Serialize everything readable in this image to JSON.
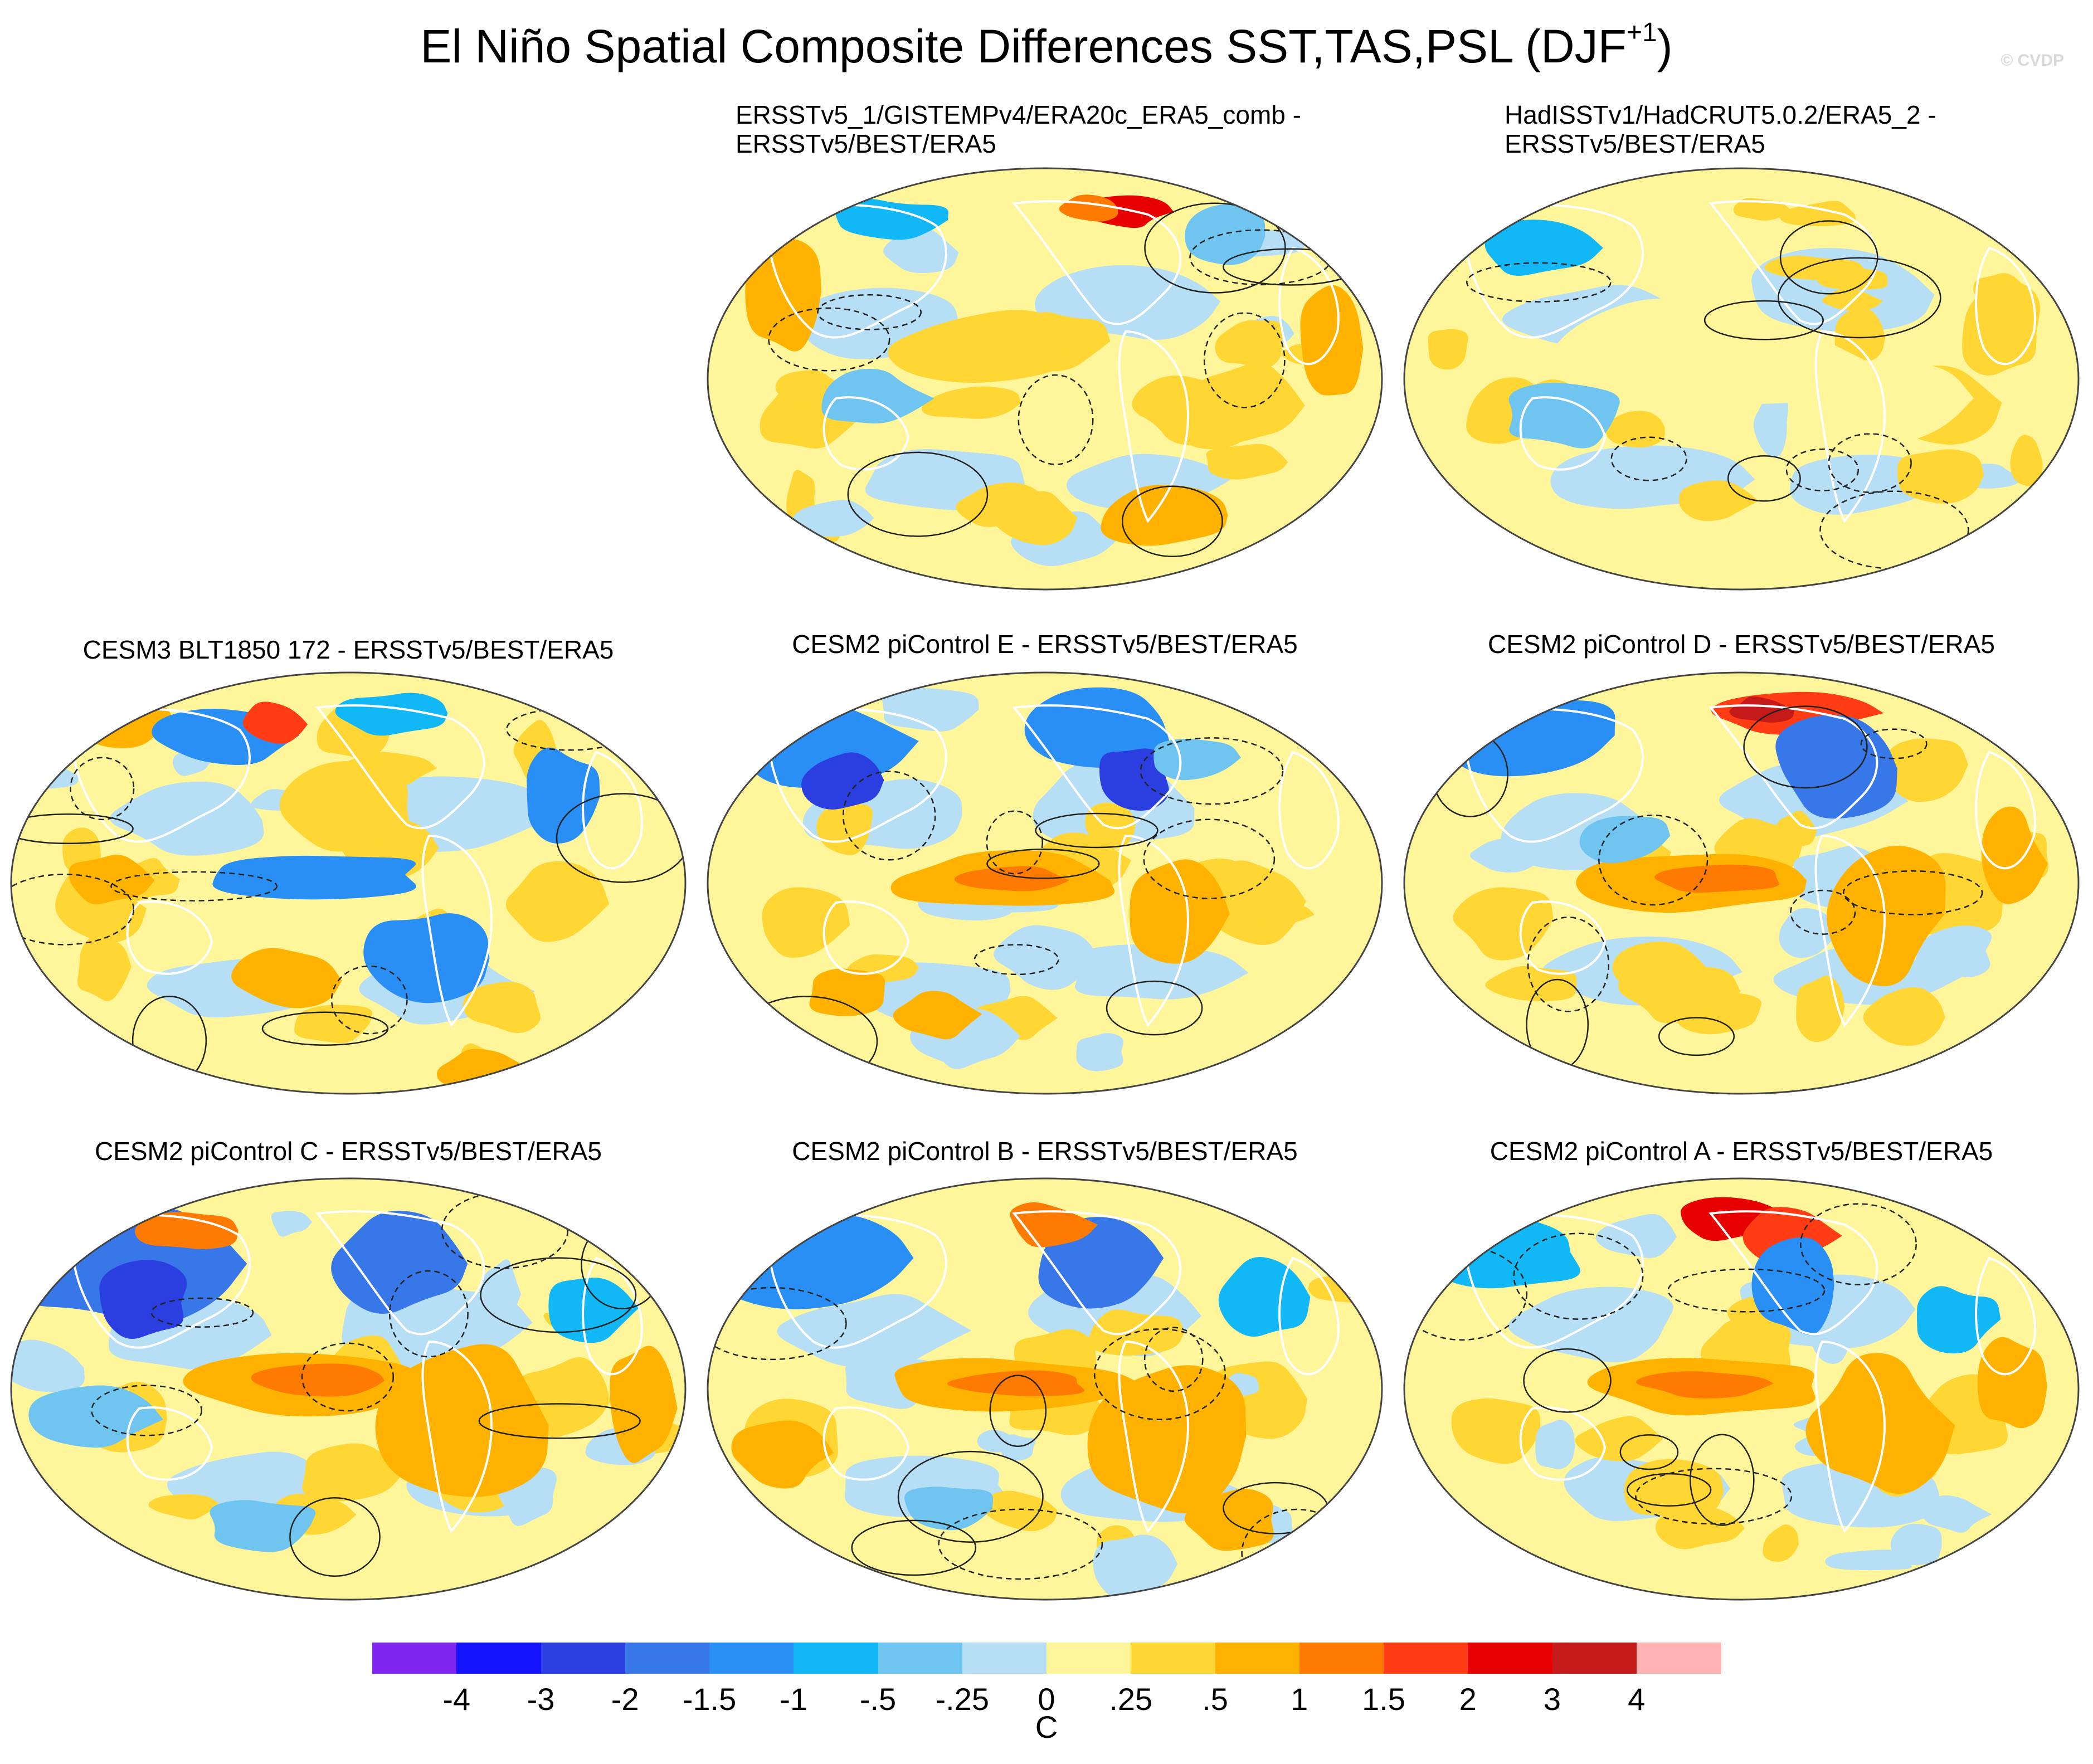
{
  "figure": {
    "title_main": "El Niño Spatial Composite Differences SST,TAS,PSL (DJF",
    "title_sup": "+1",
    "title_close": ")",
    "watermark": "© CVDP"
  },
  "panels": [
    {
      "id": "p1",
      "title_lines": [
        "ERSSTv5_1/GISTEMPv4/ERA20c_ERA5_comb -",
        "ERSSTv5/BEST/ERA5"
      ],
      "variant": 1
    },
    {
      "id": "p2",
      "title_lines": [
        "HadISSTv1/HadCRUT5.0.2/ERA5_2 -",
        "ERSSTv5/BEST/ERA5"
      ],
      "variant": 2
    },
    {
      "id": "p3",
      "title_lines": [
        "CESM3 BLT1850 172 - ERSSTv5/BEST/ERA5"
      ],
      "variant": 3
    },
    {
      "id": "p4",
      "title_lines": [
        "CESM2 piControl E - ERSSTv5/BEST/ERA5"
      ],
      "variant": 4
    },
    {
      "id": "p5",
      "title_lines": [
        "CESM2 piControl D - ERSSTv5/BEST/ERA5"
      ],
      "variant": 5
    },
    {
      "id": "p6",
      "title_lines": [
        "CESM2 piControl C - ERSSTv5/BEST/ERA5"
      ],
      "variant": 6
    },
    {
      "id": "p7",
      "title_lines": [
        "CESM2 piControl B - ERSSTv5/BEST/ERA5"
      ],
      "variant": 7
    },
    {
      "id": "p8",
      "title_lines": [
        "CESM2 piControl A - ERSSTv5/BEST/ERA5"
      ],
      "variant": 8
    }
  ],
  "colorbar": {
    "unit": "C",
    "colors": [
      "#7f26f0",
      "#1414ff",
      "#2b3fe0",
      "#3877e8",
      "#2a8ff5",
      "#12b8f5",
      "#6fc5f0",
      "#b6def4",
      "#fff59a",
      "#ffd633",
      "#ffb300",
      "#ff7a00",
      "#ff3c14",
      "#e60000",
      "#c41a1a",
      "#ffb3b3"
    ],
    "labels": [
      "-4",
      "-3",
      "-2",
      "-1.5",
      "-1",
      "-.5",
      "-.25",
      "0",
      ".25",
      ".5",
      "1",
      "1.5",
      "2",
      "3",
      "4"
    ]
  }
}
